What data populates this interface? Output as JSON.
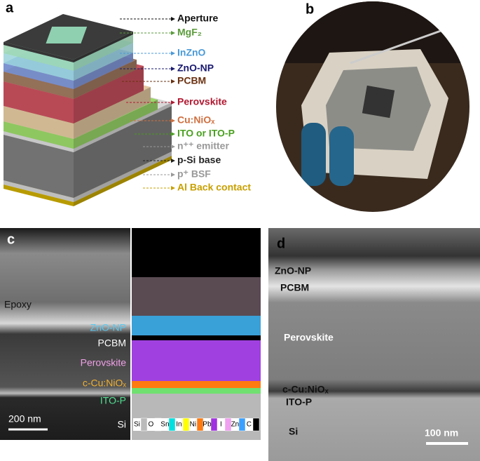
{
  "panel_a": {
    "label": "a",
    "layers": [
      "Aperture",
      "MgF₂",
      "InZnO",
      "ZnO-NP",
      "PCBM",
      "Perovskite",
      "Cu:NiOₓ",
      "ITO or ITO-P",
      "n⁺⁺ emitter",
      "p-Si base",
      "p⁺ BSF",
      "Al Back contact"
    ]
  },
  "panel_b": {
    "label": "b"
  },
  "panel_c": {
    "label": "c",
    "tem_labels": [
      "Epoxy",
      "ZnO-NP",
      "PCBM",
      "Perovskite",
      "c-Cu:NiOₓ",
      "ITO-P",
      "Si"
    ],
    "scale_bar": "200 nm",
    "eds_legend": [
      "Si",
      "O",
      "Sn",
      "In",
      "Ni",
      "Pb",
      "I",
      "Zn",
      "C"
    ]
  },
  "panel_d": {
    "label": "d",
    "tem_labels": [
      "ZnO-NP",
      "PCBM",
      "Perovskite",
      "c-Cu:NiOₓ",
      "ITO-P",
      "Si"
    ],
    "scale_bar": "100 nm"
  }
}
